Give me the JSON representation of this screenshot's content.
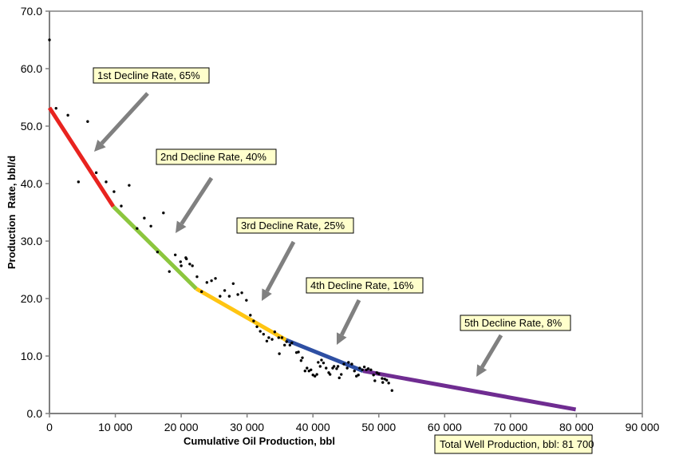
{
  "chart_data": {
    "type": "scatter",
    "title": "",
    "xlabel": "Cumulative Oil Production, bbl",
    "ylabel": "Production  Rate, bbl/d",
    "xlim": [
      0,
      90000
    ],
    "ylim": [
      0,
      70
    ],
    "xticks": [
      "0",
      "10 000",
      "20 000",
      "30 000",
      "40 000",
      "50 000",
      "60 000",
      "70 000",
      "80 000",
      "90 000"
    ],
    "xtick_values": [
      0,
      10000,
      20000,
      30000,
      40000,
      50000,
      60000,
      70000,
      80000,
      90000
    ],
    "yticks": [
      "0.0",
      "10.0",
      "20.0",
      "30.0",
      "40.0",
      "50.0",
      "60.0",
      "70.0"
    ],
    "ytick_values": [
      0,
      10,
      20,
      30,
      40,
      50,
      60,
      70
    ],
    "grid": false,
    "points": [
      [
        0,
        65
      ],
      [
        1000,
        53.1
      ],
      [
        2800,
        51.9
      ],
      [
        5800,
        50.8
      ],
      [
        4400,
        40.3
      ],
      [
        7100,
        41.9
      ],
      [
        8600,
        40.3
      ],
      [
        9800,
        38.6
      ],
      [
        12100,
        39.7
      ],
      [
        10900,
        36.1
      ],
      [
        14400,
        34.0
      ],
      [
        13300,
        32.2
      ],
      [
        15400,
        32.6
      ],
      [
        17300,
        34.9
      ],
      [
        16400,
        28.1
      ],
      [
        19100,
        27.6
      ],
      [
        20700,
        27.1
      ],
      [
        18200,
        24.7
      ],
      [
        21300,
        26.0
      ],
      [
        19900,
        26.4
      ],
      [
        20000,
        25.7
      ],
      [
        20800,
        26.9
      ],
      [
        21700,
        25.7
      ],
      [
        22400,
        23.8
      ],
      [
        23100,
        21.2
      ],
      [
        23900,
        22.8
      ],
      [
        24600,
        23.1
      ],
      [
        25200,
        23.5
      ],
      [
        25900,
        20.4
      ],
      [
        26600,
        21.4
      ],
      [
        27300,
        20.4
      ],
      [
        27900,
        22.6
      ],
      [
        28600,
        20.7
      ],
      [
        29200,
        21.0
      ],
      [
        29900,
        19.7
      ],
      [
        30500,
        17.1
      ],
      [
        31000,
        16.1
      ],
      [
        31500,
        15.1
      ],
      [
        32000,
        14.3
      ],
      [
        32500,
        13.8
      ],
      [
        33000,
        12.6
      ],
      [
        33300,
        13.2
      ],
      [
        33800,
        12.9
      ],
      [
        34200,
        14.2
      ],
      [
        34800,
        13.2
      ],
      [
        34900,
        10.4
      ],
      [
        35300,
        13.2
      ],
      [
        35700,
        11.9
      ],
      [
        36000,
        12.5
      ],
      [
        36500,
        11.9
      ],
      [
        36800,
        12.3
      ],
      [
        37500,
        10.6
      ],
      [
        37800,
        10.7
      ],
      [
        38200,
        9.2
      ],
      [
        38400,
        9.7
      ],
      [
        38800,
        7.4
      ],
      [
        39100,
        7.9
      ],
      [
        39400,
        7.4
      ],
      [
        39700,
        7.6
      ],
      [
        40000,
        6.7
      ],
      [
        40300,
        6.5
      ],
      [
        40600,
        6.8
      ],
      [
        40800,
        8.9
      ],
      [
        41100,
        8.2
      ],
      [
        41300,
        9.3
      ],
      [
        41600,
        8.8
      ],
      [
        42000,
        7.9
      ],
      [
        42400,
        7.1
      ],
      [
        42600,
        6.8
      ],
      [
        43000,
        7.9
      ],
      [
        43200,
        8.2
      ],
      [
        43600,
        7.8
      ],
      [
        43800,
        8.2
      ],
      [
        44000,
        6.2
      ],
      [
        44300,
        6.8
      ],
      [
        44700,
        8.6
      ],
      [
        45200,
        7.9
      ],
      [
        45400,
        8.9
      ],
      [
        45900,
        8.6
      ],
      [
        46300,
        7.4
      ],
      [
        46600,
        6.5
      ],
      [
        46900,
        6.7
      ],
      [
        47100,
        7.9
      ],
      [
        47500,
        7.6
      ],
      [
        47800,
        8.1
      ],
      [
        48100,
        7.6
      ],
      [
        48400,
        7.8
      ],
      [
        48800,
        7.6
      ],
      [
        49200,
        6.7
      ],
      [
        49400,
        5.7
      ],
      [
        49700,
        7.1
      ],
      [
        50000,
        6.9
      ],
      [
        50500,
        6.1
      ],
      [
        50600,
        5.4
      ],
      [
        50900,
        6.0
      ],
      [
        51200,
        5.8
      ],
      [
        51500,
        5.3
      ],
      [
        52000,
        4.0
      ]
    ],
    "segments": [
      {
        "color": "#e8231f",
        "from": [
          0,
          53.2
        ],
        "to": [
          9700,
          36.0
        ]
      },
      {
        "color": "#8cc63e",
        "from": [
          9700,
          36.0
        ],
        "to": [
          22300,
          21.7
        ]
      },
      {
        "color": "#ffc512",
        "from": [
          22300,
          21.7
        ],
        "to": [
          35900,
          12.8
        ]
      },
      {
        "color": "#2e4fa3",
        "from": [
          35900,
          12.8
        ],
        "to": [
          47600,
          7.4
        ]
      },
      {
        "color": "#6f2c91",
        "from": [
          47600,
          7.4
        ],
        "to": [
          79900,
          0.7
        ]
      }
    ],
    "annotations": [
      "1st Decline Rate, 65%",
      "2nd Decline Rate, 40%",
      "3rd Decline Rate, 25%",
      "4th Decline Rate, 16%",
      "5th Decline Rate, 8%"
    ],
    "total_label": "Total Well Production, bbl: 81 700",
    "annotation_box_color": "#ffffcc",
    "arrow_color": "#808080"
  }
}
